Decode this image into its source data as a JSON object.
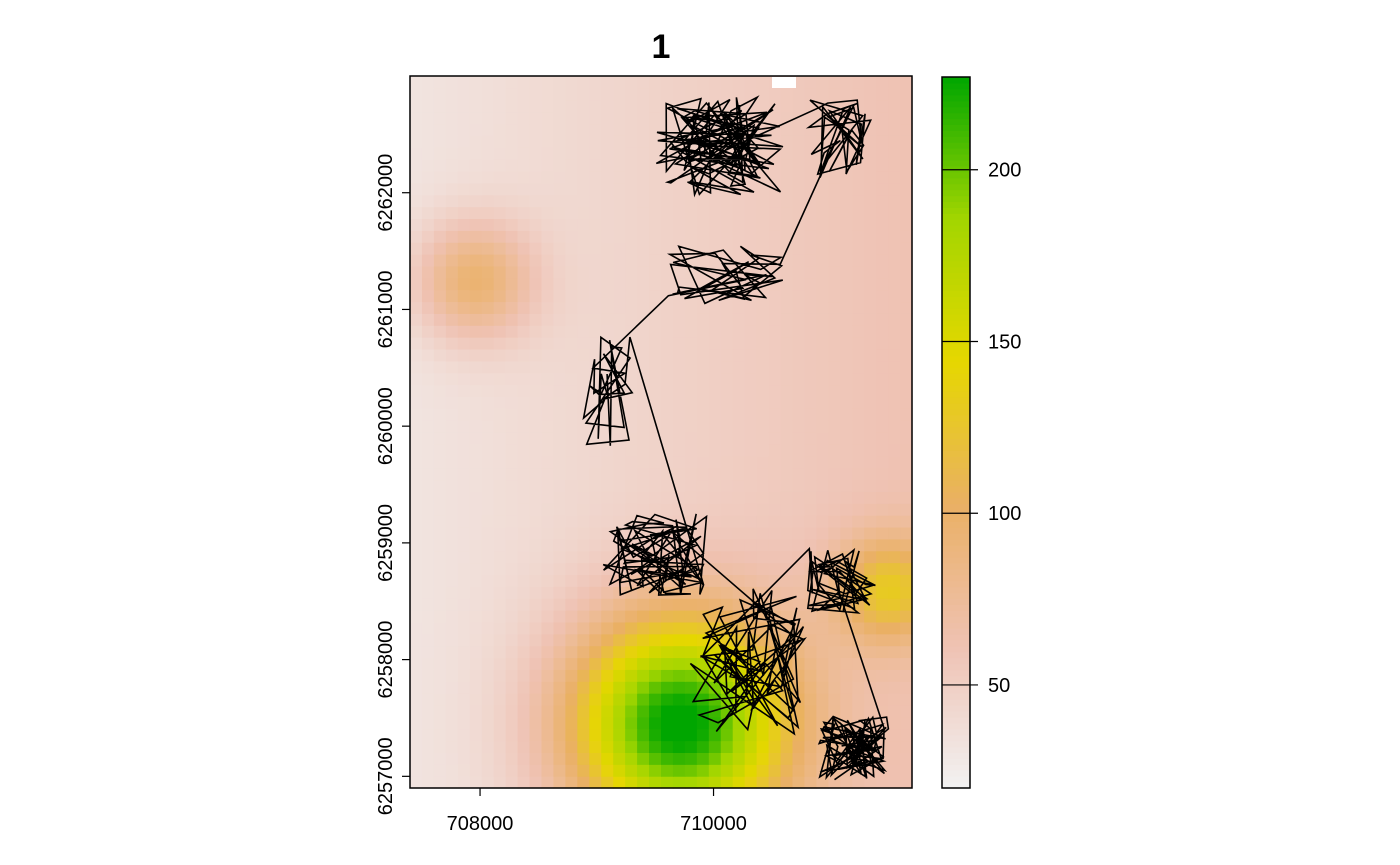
{
  "chart_data": {
    "type": "heatmap",
    "title": "1",
    "xlabel": "",
    "ylabel": "",
    "xlim": [
      707400,
      711700
    ],
    "ylim": [
      6256900,
      6263000
    ],
    "x_ticks": [
      708000,
      710000
    ],
    "x_tick_labels": [
      "708000",
      "710000"
    ],
    "y_ticks": [
      6257000,
      6258000,
      6259000,
      6260000,
      6261000,
      6262000
    ],
    "y_tick_labels": [
      "6257000",
      "6258000",
      "6259000",
      "6260000",
      "6261000",
      "6262000"
    ],
    "legend": {
      "position": "right",
      "range": [
        20,
        227
      ],
      "ticks": [
        50,
        100,
        150,
        200
      ],
      "tick_labels": [
        "50",
        "100",
        "150",
        "200"
      ],
      "colors": [
        "#f2f2f2",
        "#efc2b3",
        "#eab064",
        "#e6d700",
        "#a3d600",
        "#00a600"
      ]
    },
    "raster_hotspots": [
      {
        "x": 709700,
        "y": 6257450,
        "value": 225,
        "spread": 900
      },
      {
        "x": 707950,
        "y": 6261250,
        "value": 100,
        "spread": 500
      },
      {
        "x": 711500,
        "y": 6258600,
        "value": 110,
        "spread": 450
      }
    ],
    "track_clusters": [
      {
        "x": 710050,
        "y": 6262400,
        "sx": 550,
        "sy": 420,
        "n": 110
      },
      {
        "x": 711100,
        "y": 6262450,
        "sx": 300,
        "sy": 350,
        "n": 40
      },
      {
        "x": 710100,
        "y": 6261300,
        "sx": 500,
        "sy": 250,
        "n": 40
      },
      {
        "x": 709100,
        "y": 6260300,
        "sx": 220,
        "sy": 500,
        "n": 30
      },
      {
        "x": 709500,
        "y": 6258900,
        "sx": 450,
        "sy": 350,
        "n": 80
      },
      {
        "x": 710300,
        "y": 6258000,
        "sx": 500,
        "sy": 650,
        "n": 70
      },
      {
        "x": 711100,
        "y": 6258700,
        "sx": 300,
        "sy": 300,
        "n": 50
      },
      {
        "x": 711200,
        "y": 6257250,
        "sx": 300,
        "sy": 280,
        "n": 90
      }
    ]
  }
}
